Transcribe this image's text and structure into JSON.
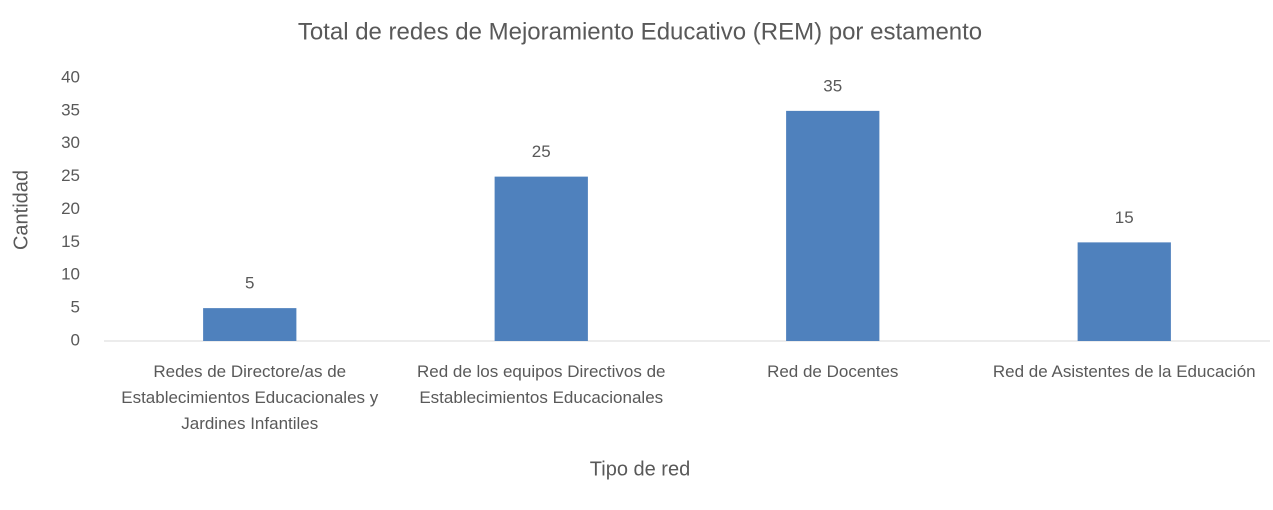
{
  "chart_data": {
    "type": "bar",
    "title": "Total de redes de Mejoramiento Educativo (REM) por estamento",
    "x_label": "Tipo de red",
    "y_label": "Cantidad",
    "categories": [
      "Redes de Directore/as de Establecimientos Educacionales y Jardines Infantiles",
      "Red de los equipos Directivos de Establecimientos Educacionales",
      "Red de Docentes",
      "Red de Asistentes de la Educación"
    ],
    "values": [
      5,
      25,
      35,
      15
    ],
    "color": "#4f81bd",
    "ylim": [
      0,
      40
    ],
    "yticks": [
      0,
      5,
      10,
      15,
      20,
      25,
      30,
      35,
      40
    ],
    "grid": false
  }
}
